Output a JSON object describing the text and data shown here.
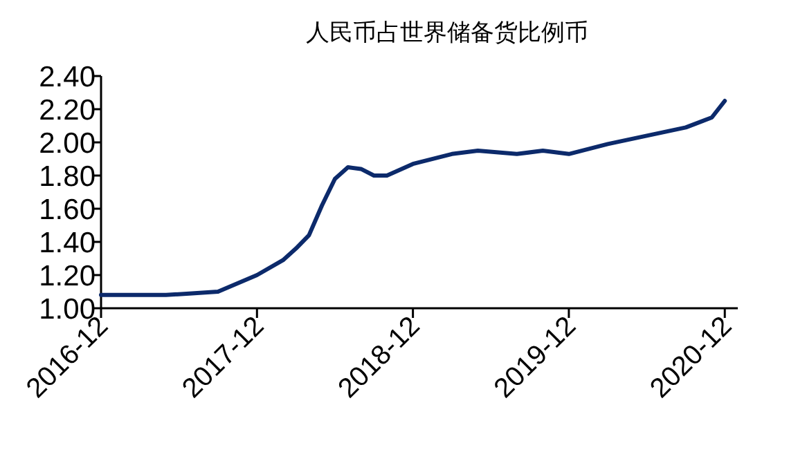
{
  "chart_data": {
    "type": "line",
    "title": "人民币占世界储备货比例币",
    "x": [
      "2016-12",
      "2017-03",
      "2017-05",
      "2017-07",
      "2017-09",
      "2017-12",
      "2018-02",
      "2018-03",
      "2018-04",
      "2018-05",
      "2018-06",
      "2018-07",
      "2018-08",
      "2018-09",
      "2018-10",
      "2018-12",
      "2019-03",
      "2019-05",
      "2019-08",
      "2019-10",
      "2019-12",
      "2020-03",
      "2020-06",
      "2020-09",
      "2020-11",
      "2020-12"
    ],
    "series": [
      {
        "color": "#0c2a6b",
        "values": [
          1.08,
          1.08,
          1.08,
          1.09,
          1.1,
          1.2,
          1.29,
          1.36,
          1.44,
          1.62,
          1.78,
          1.85,
          1.84,
          1.8,
          1.8,
          1.87,
          1.93,
          1.95,
          1.93,
          1.95,
          1.93,
          1.99,
          2.04,
          2.09,
          2.15,
          2.25
        ]
      }
    ],
    "xlim": [
      "2016-12",
      "2021-01"
    ],
    "xticks": [
      "2016-12",
      "2017-12",
      "2018-12",
      "2019-12",
      "2020-12"
    ],
    "ylim": [
      1.0,
      2.4
    ],
    "yticks": [
      {
        "value": 1.0,
        "label": "1.00"
      },
      {
        "value": 1.2,
        "label": "1.20"
      },
      {
        "value": 1.4,
        "label": "1.40"
      },
      {
        "value": 1.6,
        "label": "1.60"
      },
      {
        "value": 1.8,
        "label": "1.80"
      },
      {
        "value": 2.0,
        "label": "2.00"
      },
      {
        "value": 2.2,
        "label": "2.20"
      },
      {
        "value": 2.4,
        "label": "2.40"
      }
    ],
    "grid": false,
    "marker": "none",
    "line_style": "solid"
  }
}
